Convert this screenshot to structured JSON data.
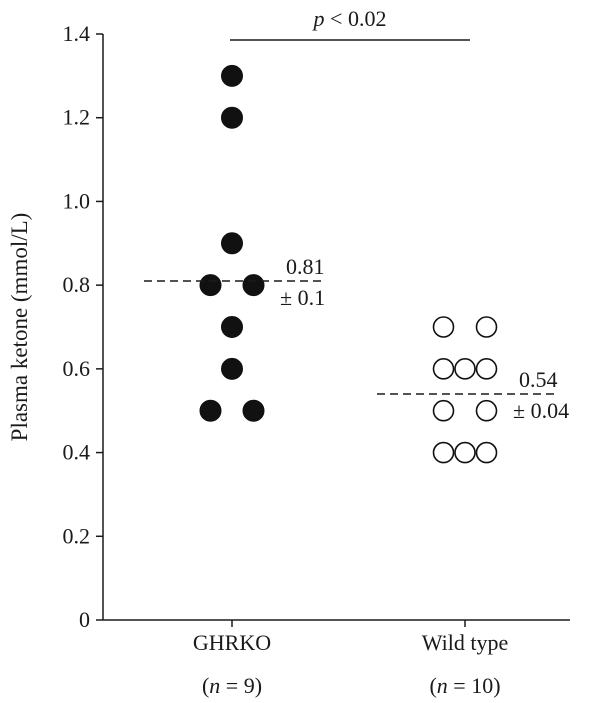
{
  "chart_data": {
    "type": "scatter",
    "ylabel": "Plasma ketone (mmol/L)",
    "ylim": [
      0,
      1.4
    ],
    "yticks": [
      "0",
      "0.2",
      "0.4",
      "0.6",
      "0.8",
      "1.0",
      "1.2",
      "1.4"
    ],
    "grid": false,
    "groups": [
      {
        "label": "GHRKO",
        "n_text": "(n = 9)",
        "n_var": "n",
        "n_rest": " = 9)",
        "marker": "filled",
        "color": "#111111",
        "mean_label": "0.81",
        "sd_label": "± 0.1",
        "mean": 0.81,
        "sd": 0.1,
        "points": [
          {
            "y": 1.3,
            "slot": 0
          },
          {
            "y": 1.2,
            "slot": 0
          },
          {
            "y": 0.9,
            "slot": 0
          },
          {
            "y": 0.8,
            "slot": -1
          },
          {
            "y": 0.8,
            "slot": 1
          },
          {
            "y": 0.7,
            "slot": 0
          },
          {
            "y": 0.6,
            "slot": 0
          },
          {
            "y": 0.5,
            "slot": -1
          },
          {
            "y": 0.5,
            "slot": 1
          }
        ]
      },
      {
        "label": "Wild type",
        "n_text": "(n = 10)",
        "n_var": "n",
        "n_rest": " = 10)",
        "marker": "open",
        "color": "#111111",
        "mean_label": "0.54",
        "sd_label": "± 0.04",
        "mean": 0.54,
        "sd": 0.04,
        "points": [
          {
            "y": 0.7,
            "slot": -1
          },
          {
            "y": 0.7,
            "slot": 1
          },
          {
            "y": 0.6,
            "slot": -1
          },
          {
            "y": 0.6,
            "slot": 0
          },
          {
            "y": 0.6,
            "slot": 1
          },
          {
            "y": 0.5,
            "slot": -1
          },
          {
            "y": 0.5,
            "slot": 1
          },
          {
            "y": 0.4,
            "slot": -1
          },
          {
            "y": 0.4,
            "slot": 0
          },
          {
            "y": 0.4,
            "slot": 1
          }
        ]
      }
    ],
    "significance": {
      "p_var": "p",
      "p_rest": " < 0.02",
      "text": "p < 0.02"
    }
  }
}
